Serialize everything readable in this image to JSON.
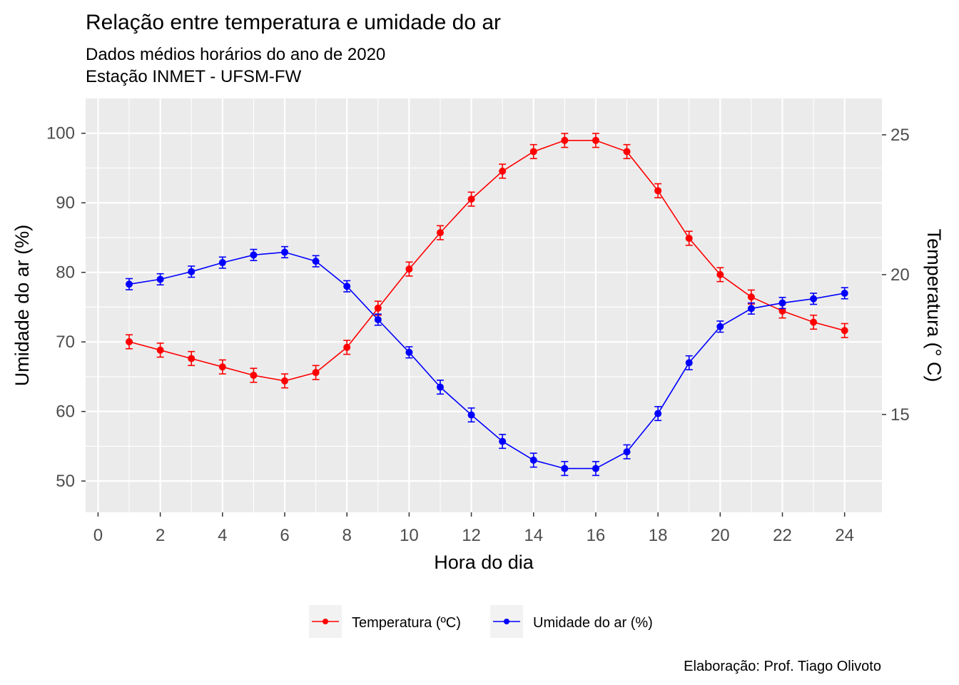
{
  "chart_data": {
    "type": "line",
    "title": "Relação entre temperatura e umidade do ar",
    "subtitle": [
      "Dados médios horários do ano de 2020",
      "Estação INMET - UFSM-FW"
    ],
    "caption": "Elaboração: Prof. Tiago Olivoto",
    "xlabel": "Hora do dia",
    "ylabel": "Umidade do ar (%)",
    "y2label": "Temperatura (° C)",
    "xlim": [
      -0.4,
      25.2
    ],
    "ylim": [
      45.5,
      105
    ],
    "y2lim": [
      11.5,
      26.3
    ],
    "xticks": [
      0,
      2,
      4,
      6,
      8,
      10,
      12,
      14,
      16,
      18,
      20,
      22,
      24
    ],
    "yticks": [
      50,
      60,
      70,
      80,
      90,
      100
    ],
    "y2ticks": [
      15,
      20,
      25
    ],
    "grid": true,
    "legend_position": "bottom",
    "x": [
      1,
      2,
      3,
      4,
      5,
      6,
      7,
      8,
      9,
      10,
      11,
      12,
      13,
      14,
      15,
      16,
      17,
      18,
      19,
      20,
      21,
      22,
      23,
      24
    ],
    "series": [
      {
        "name": "Temperatura (ºC)",
        "axis": "right",
        "color": "#FF0000",
        "values": [
          17.6,
          17.3,
          17.0,
          16.7,
          16.4,
          16.2,
          16.5,
          17.4,
          18.8,
          20.2,
          21.5,
          22.7,
          23.7,
          24.4,
          24.8,
          24.8,
          24.4,
          23.0,
          21.3,
          20.0,
          19.2,
          18.7,
          18.3,
          18.0
        ],
        "error": [
          0.25,
          0.25,
          0.25,
          0.25,
          0.25,
          0.25,
          0.25,
          0.25,
          0.25,
          0.25,
          0.25,
          0.25,
          0.25,
          0.25,
          0.25,
          0.25,
          0.25,
          0.25,
          0.25,
          0.25,
          0.25,
          0.25,
          0.25,
          0.25
        ]
      },
      {
        "name": "Umidade do ar (%)",
        "axis": "left",
        "color": "#0000FF",
        "values": [
          78.3,
          79.0,
          80.1,
          81.4,
          82.5,
          82.9,
          81.6,
          78.0,
          73.2,
          68.5,
          63.5,
          59.5,
          55.7,
          53.0,
          51.8,
          51.8,
          54.2,
          59.7,
          67.0,
          72.2,
          74.8,
          75.6,
          76.2,
          77.0
        ],
        "error": [
          0.8,
          0.8,
          0.8,
          0.8,
          0.8,
          0.8,
          0.8,
          0.8,
          0.8,
          0.8,
          1.0,
          1.0,
          1.0,
          1.0,
          1.0,
          1.0,
          1.0,
          1.0,
          1.0,
          0.8,
          0.8,
          0.8,
          0.8,
          0.8
        ]
      }
    ]
  }
}
